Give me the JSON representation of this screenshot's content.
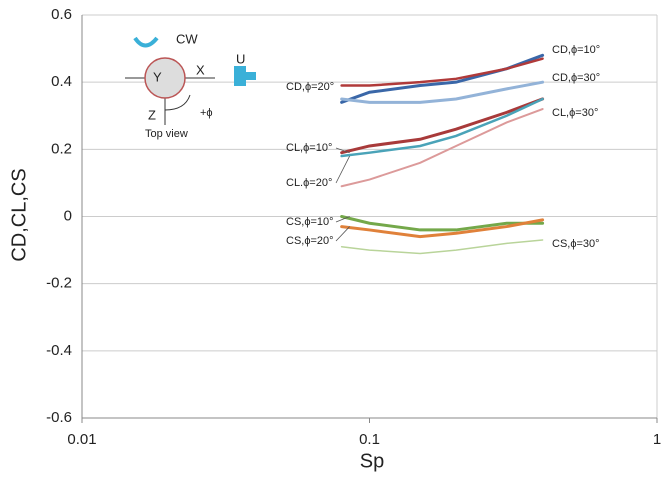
{
  "chart_data": {
    "type": "line",
    "xlabel": "Sp",
    "ylabel": "CD,CL,CS",
    "xscale": "log",
    "xlim": [
      0.01,
      1
    ],
    "xticks": [
      0.01,
      0.1,
      1
    ],
    "ylim": [
      -0.6,
      0.6
    ],
    "yticks": [
      -0.6,
      -0.4,
      -0.2,
      0,
      0.2,
      0.4,
      0.6
    ],
    "grid": true,
    "x": [
      0.08,
      0.1,
      0.15,
      0.2,
      0.3,
      0.4
    ],
    "series": [
      {
        "name": "CD,ϕ=10°",
        "color": "#3a67a8",
        "values": [
          0.34,
          0.37,
          0.39,
          0.4,
          0.44,
          0.48
        ]
      },
      {
        "name": "CD,ϕ=20°",
        "color": "#b03a3a",
        "values": [
          0.39,
          0.39,
          0.4,
          0.41,
          0.44,
          0.47
        ]
      },
      {
        "name": "CD,ϕ=30°",
        "color": "#93b3d8",
        "values": [
          0.35,
          0.34,
          0.34,
          0.35,
          0.38,
          0.4
        ]
      },
      {
        "name": "CL,ϕ=10°",
        "color": "#a83a3a",
        "values": [
          0.19,
          0.21,
          0.23,
          0.26,
          0.31,
          0.35
        ]
      },
      {
        "name": "CL.ϕ=20°",
        "color": "#4aa3b8",
        "values": [
          0.18,
          0.19,
          0.21,
          0.24,
          0.3,
          0.35
        ]
      },
      {
        "name": "CL,ϕ=30°",
        "color": "#dc9a9a",
        "values": [
          0.09,
          0.11,
          0.16,
          0.21,
          0.28,
          0.32
        ]
      },
      {
        "name": "CS,ϕ=10°",
        "color": "#74a84a",
        "values": [
          0.0,
          -0.02,
          -0.04,
          -0.04,
          -0.02,
          -0.02
        ]
      },
      {
        "name": "CS,ϕ=20°",
        "color": "#e0813a",
        "values": [
          -0.03,
          -0.04,
          -0.06,
          -0.05,
          -0.03,
          -0.01
        ]
      },
      {
        "name": "CS,ϕ=30°",
        "color": "#b9d49a",
        "values": [
          -0.09,
          -0.1,
          -0.11,
          -0.1,
          -0.08,
          -0.07
        ]
      }
    ],
    "inset": {
      "rotation": "CW",
      "flow": "U",
      "x_axis": "X",
      "y_axis": "Y",
      "z_axis": "Z",
      "angle": "+ϕ",
      "caption": "Top view"
    }
  }
}
